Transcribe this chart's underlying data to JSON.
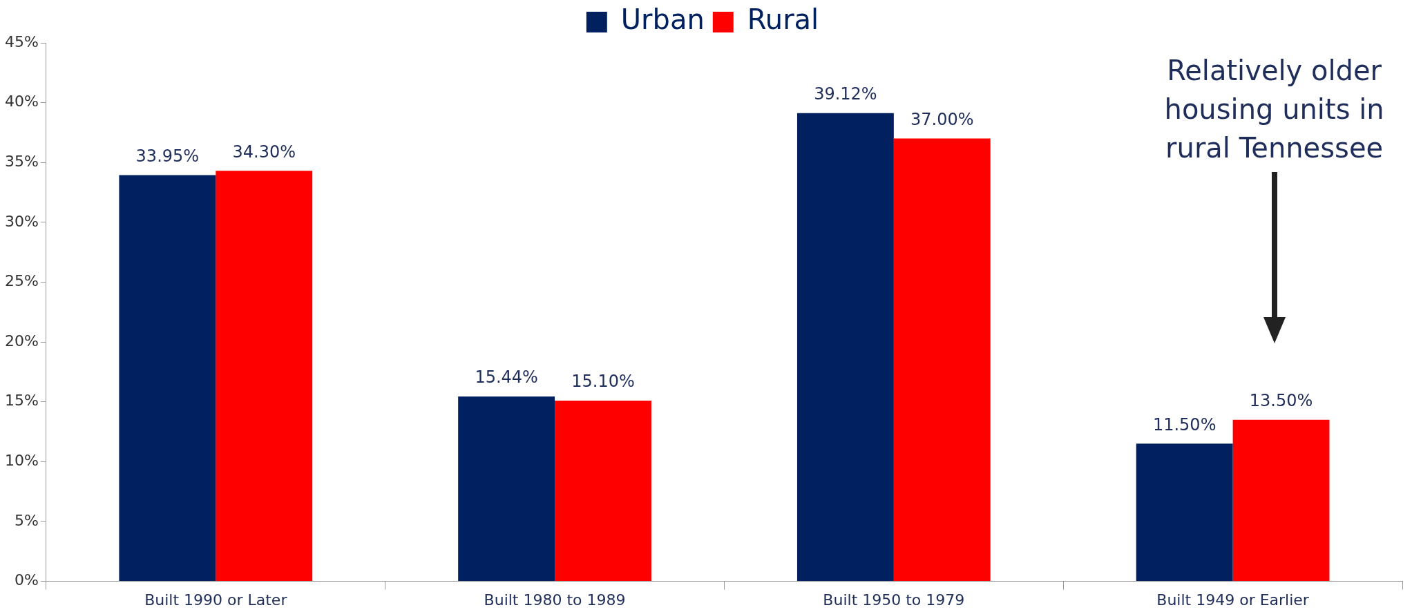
{
  "chart_data": {
    "type": "bar",
    "categories": [
      "Built 1990 or Later",
      "Built 1980 to 1989",
      "Built 1950 to 1979",
      "Built 1949 or Earlier"
    ],
    "series": [
      {
        "name": "Urban",
        "color": "#002060",
        "values": [
          33.95,
          15.44,
          39.12,
          11.5
        ],
        "value_labels": [
          "33.95%",
          "15.44%",
          "39.12%",
          "11.50%"
        ]
      },
      {
        "name": "Rural",
        "color": "#ff0000",
        "values": [
          34.3,
          15.1,
          37.0,
          13.5
        ],
        "value_labels": [
          "34.30%",
          "15.10%",
          "37.00%",
          "13.50%"
        ]
      }
    ],
    "ylim": [
      0,
      45
    ],
    "yticks": [
      {
        "value": 0,
        "label": "0%"
      },
      {
        "value": 5,
        "label": "5%"
      },
      {
        "value": 10,
        "label": "10%"
      },
      {
        "value": 15,
        "label": "15%"
      },
      {
        "value": 20,
        "label": "20%"
      },
      {
        "value": 25,
        "label": "25%"
      },
      {
        "value": 30,
        "label": "30%"
      },
      {
        "value": 35,
        "label": "35%"
      },
      {
        "value": 40,
        "label": "40%"
      },
      {
        "value": 45,
        "label": "45%"
      }
    ],
    "grid": false,
    "legend": "top",
    "annotations": [
      "Relatively older housing units in rural Tennessee"
    ]
  }
}
